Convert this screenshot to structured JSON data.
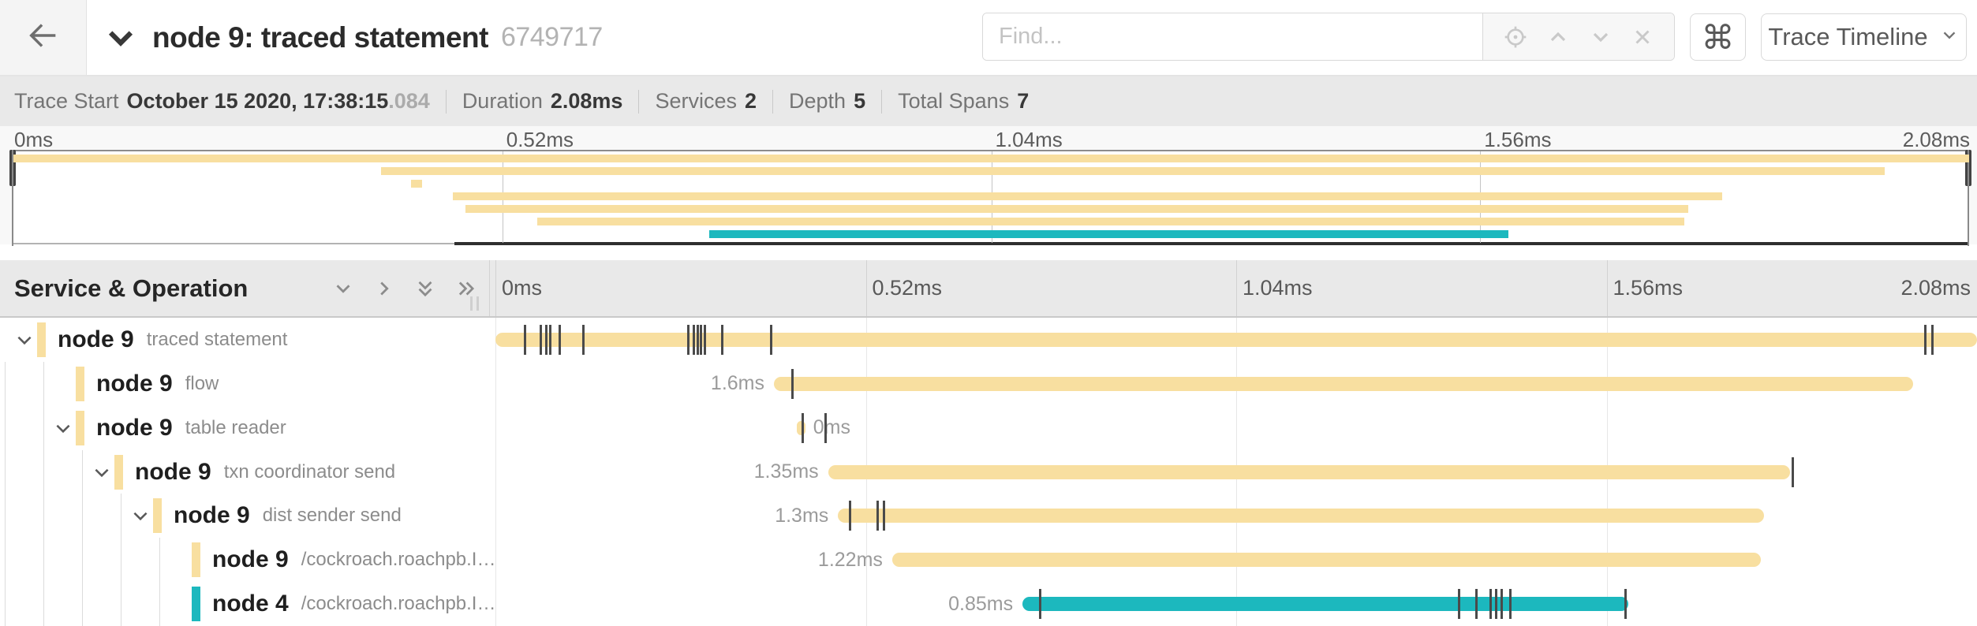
{
  "header": {
    "title": "node 9: traced statement",
    "trace_id": "6749717",
    "find_placeholder": "Find...",
    "shortcut_symbol": "⌘",
    "view_selector": "Trace Timeline",
    "icons": [
      "back-arrow-icon",
      "collapse-chevron-icon",
      "target-icon",
      "chevron-up-icon",
      "chevron-down-icon",
      "close-icon",
      "command-icon",
      "dropdown-chevron-icon"
    ]
  },
  "summary": {
    "trace_start_label": "Trace Start",
    "trace_start_value": "October 15 2020, 17:38:15",
    "trace_start_fraction": ".084",
    "duration_label": "Duration",
    "duration_value": "2.08ms",
    "services_label": "Services",
    "services_value": "2",
    "depth_label": "Depth",
    "depth_value": "5",
    "total_spans_label": "Total Spans",
    "total_spans_value": "7"
  },
  "colors": {
    "tan": "#F8DFA0",
    "teal": "#1CB8BE",
    "tick": "#4a4a4a"
  },
  "minimap": {
    "ticks": [
      {
        "label": "0ms",
        "t": 0
      },
      {
        "label": "0.52ms",
        "t": 0.52
      },
      {
        "label": "1.04ms",
        "t": 1.04
      },
      {
        "label": "1.56ms",
        "t": 1.56
      },
      {
        "label": "2.08ms",
        "t": 2.08
      }
    ],
    "spans": [
      {
        "start_ms": 0,
        "end_ms": 2.08,
        "color": "tan"
      },
      {
        "start_ms": 0.391,
        "end_ms": 1.99,
        "color": "tan"
      },
      {
        "start_ms": 0.423,
        "end_ms": 0.435,
        "color": "tan"
      },
      {
        "start_ms": 0.467,
        "end_ms": 1.817,
        "color": "tan"
      },
      {
        "start_ms": 0.481,
        "end_ms": 1.781,
        "color": "tan"
      },
      {
        "start_ms": 0.557,
        "end_ms": 1.777,
        "color": "tan"
      },
      {
        "start_ms": 0.74,
        "end_ms": 1.59,
        "color": "teal"
      }
    ]
  },
  "timeline": {
    "section_title": "Service & Operation",
    "duration_ms": 2.08,
    "ticks": [
      {
        "label": "0ms",
        "t": 0
      },
      {
        "label": "0.52ms",
        "t": 0.52
      },
      {
        "label": "1.04ms",
        "t": 1.04
      },
      {
        "label": "1.56ms",
        "t": 1.56
      },
      {
        "label": "2.08ms",
        "t": 2.08
      }
    ],
    "rows": [
      {
        "service": "node 9",
        "operation": "traced statement",
        "depth": 0,
        "expandable": true,
        "color": "tan",
        "start_ms": 0,
        "end_ms": 2.08,
        "duration_label": "",
        "label_side": "none",
        "log_ticks_ms": [
          0.041,
          0.064,
          0.071,
          0.077,
          0.09,
          0.124,
          0.271,
          0.278,
          0.284,
          0.289,
          0.294,
          0.318,
          0.387,
          2.008,
          2.017
        ]
      },
      {
        "service": "node 9",
        "operation": "flow",
        "depth": 1,
        "expandable": false,
        "color": "tan",
        "start_ms": 0.391,
        "end_ms": 1.99,
        "duration_label": "1.6ms",
        "label_side": "left",
        "log_ticks_ms": [
          0.417
        ]
      },
      {
        "service": "node 9",
        "operation": "table reader",
        "depth": 1,
        "expandable": true,
        "color": "tan",
        "start_ms": 0.423,
        "end_ms": 0.435,
        "duration_label": "0ms",
        "label_side": "right",
        "log_ticks_ms": [
          0.431,
          0.464
        ]
      },
      {
        "service": "node 9",
        "operation": "txn coordinator send",
        "depth": 2,
        "expandable": true,
        "color": "tan",
        "start_ms": 0.467,
        "end_ms": 1.817,
        "duration_label": "1.35ms",
        "label_side": "left",
        "log_ticks_ms": [
          1.821
        ]
      },
      {
        "service": "node 9",
        "operation": "dist sender send",
        "depth": 3,
        "expandable": true,
        "color": "tan",
        "start_ms": 0.481,
        "end_ms": 1.781,
        "duration_label": "1.3ms",
        "label_side": "left",
        "log_ticks_ms": [
          0.498,
          0.537,
          0.545
        ]
      },
      {
        "service": "node 9",
        "operation": "/cockroach.roachpb.I…",
        "depth": 4,
        "expandable": false,
        "color": "tan",
        "start_ms": 0.557,
        "end_ms": 1.777,
        "duration_label": "1.22ms",
        "label_side": "left",
        "log_ticks_ms": []
      },
      {
        "service": "node 4",
        "operation": "/cockroach.roachpb.I…",
        "depth": 4,
        "expandable": false,
        "color": "teal",
        "start_ms": 0.74,
        "end_ms": 1.59,
        "duration_label": "0.85ms",
        "label_side": "left",
        "log_ticks_ms": [
          0.765,
          1.353,
          1.377,
          1.397,
          1.405,
          1.413,
          1.425,
          1.587
        ]
      }
    ]
  }
}
